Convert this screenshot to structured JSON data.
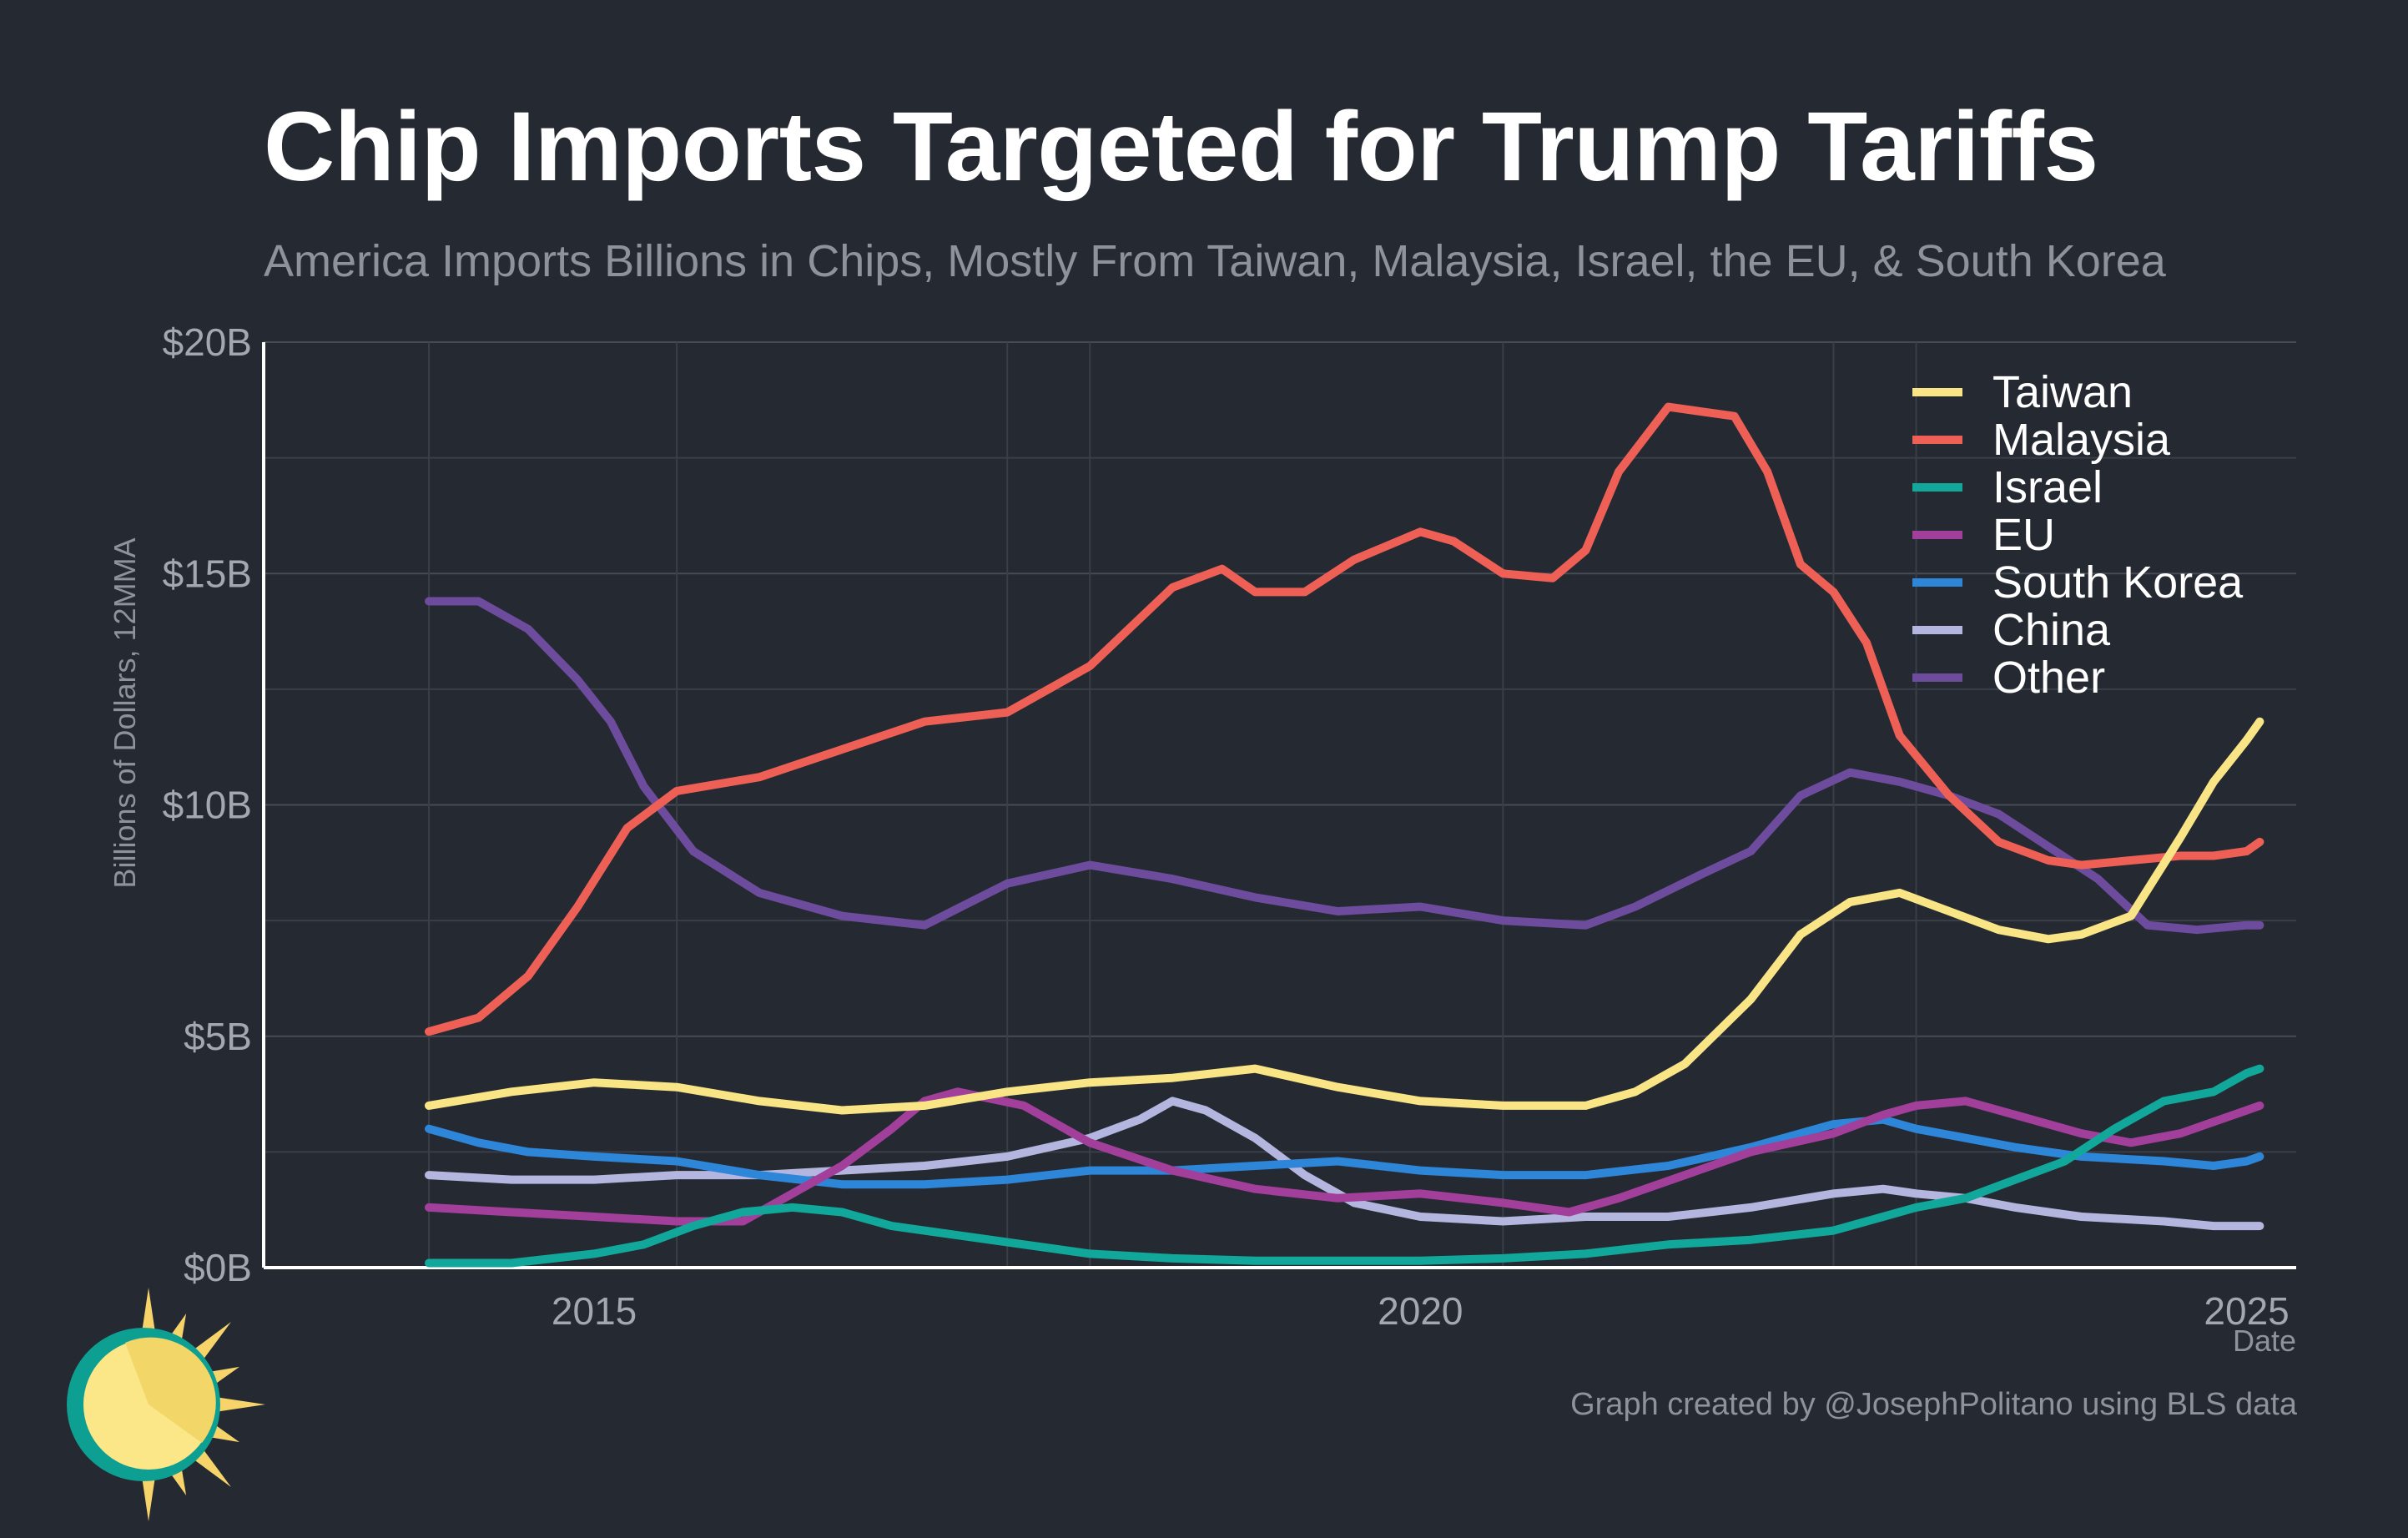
{
  "title": "Chip Imports Targeted for Trump Tariffs",
  "subtitle": "America Imports Billions in Chips, Mostly From Taiwan, Malaysia, Israel, the EU, & South Korea",
  "credit": "Graph created by @JosephPolitano using BLS data",
  "logo": "sun-logo-icon",
  "chart_data": {
    "type": "line",
    "ylabel": "Billions of Dollars, 12MMA",
    "xlabel": "Date",
    "x_ticks": [
      2015,
      2020,
      2025
    ],
    "x_tick_labels": [
      "2015",
      "2020",
      "2025"
    ],
    "y_ticks": [
      0,
      5,
      10,
      15,
      20
    ],
    "y_tick_labels": [
      "$0B",
      "$5B",
      "$10B",
      "$15B",
      "$20B"
    ],
    "xlim": [
      2013.0,
      2025.3
    ],
    "ylim": [
      0,
      20
    ],
    "grid": true,
    "legend_position": "top-right",
    "series": [
      {
        "name": "Taiwan",
        "color": "#f9e585",
        "x": [
          2014.0,
          2014.5,
          2015.0,
          2015.5,
          2016.0,
          2016.5,
          2017.0,
          2017.5,
          2018.0,
          2018.5,
          2019.0,
          2019.5,
          2020.0,
          2020.5,
          2021.0,
          2021.3,
          2021.6,
          2022.0,
          2022.3,
          2022.6,
          2022.9,
          2023.2,
          2023.5,
          2023.8,
          2024.0,
          2024.3,
          2024.6,
          2024.8,
          2025.0,
          2025.08
        ],
        "y": [
          3.5,
          3.8,
          4.0,
          3.9,
          3.6,
          3.4,
          3.5,
          3.8,
          4.0,
          4.1,
          4.3,
          3.9,
          3.6,
          3.5,
          3.5,
          3.8,
          4.4,
          5.8,
          7.2,
          7.9,
          8.1,
          7.7,
          7.3,
          7.1,
          7.2,
          7.6,
          9.3,
          10.5,
          11.4,
          11.8
        ]
      },
      {
        "name": "Malaysia",
        "color": "#ee6055",
        "x": [
          2014.0,
          2014.3,
          2014.6,
          2014.9,
          2015.2,
          2015.5,
          2016.0,
          2016.5,
          2017.0,
          2017.5,
          2018.0,
          2018.5,
          2018.8,
          2019.0,
          2019.3,
          2019.6,
          2020.0,
          2020.2,
          2020.5,
          2020.8,
          2021.0,
          2021.2,
          2021.5,
          2021.7,
          2021.9,
          2022.1,
          2022.3,
          2022.5,
          2022.7,
          2022.9,
          2023.2,
          2023.5,
          2023.8,
          2024.0,
          2024.3,
          2024.6,
          2024.8,
          2025.0,
          2025.08
        ],
        "y": [
          5.1,
          5.4,
          6.3,
          7.8,
          9.5,
          10.3,
          10.6,
          11.2,
          11.8,
          12.0,
          13.0,
          14.7,
          15.1,
          14.6,
          14.6,
          15.3,
          15.9,
          15.7,
          15.0,
          14.9,
          15.5,
          17.2,
          18.6,
          18.5,
          18.4,
          17.2,
          15.2,
          14.6,
          13.5,
          11.5,
          10.2,
          9.2,
          8.8,
          8.7,
          8.8,
          8.9,
          8.9,
          9.0,
          9.2
        ]
      },
      {
        "name": "Israel",
        "color": "#11a79a",
        "x": [
          2014.0,
          2014.5,
          2015.0,
          2015.3,
          2015.6,
          2015.9,
          2016.2,
          2016.5,
          2016.8,
          2017.2,
          2017.6,
          2018.0,
          2018.5,
          2019.0,
          2019.5,
          2020.0,
          2020.5,
          2021.0,
          2021.5,
          2022.0,
          2022.5,
          2022.8,
          2023.0,
          2023.3,
          2023.6,
          2023.9,
          2024.2,
          2024.5,
          2024.8,
          2025.0,
          2025.08
        ],
        "y": [
          0.1,
          0.1,
          0.3,
          0.5,
          0.9,
          1.2,
          1.3,
          1.2,
          0.9,
          0.7,
          0.5,
          0.3,
          0.2,
          0.15,
          0.15,
          0.15,
          0.2,
          0.3,
          0.5,
          0.6,
          0.8,
          1.1,
          1.3,
          1.5,
          1.9,
          2.3,
          3.0,
          3.6,
          3.8,
          4.2,
          4.3
        ]
      },
      {
        "name": "EU",
        "color": "#a23f9b",
        "x": [
          2014.0,
          2014.5,
          2015.0,
          2015.5,
          2015.9,
          2016.2,
          2016.5,
          2016.8,
          2017.0,
          2017.2,
          2017.6,
          2018.0,
          2018.5,
          2019.0,
          2019.5,
          2020.0,
          2020.5,
          2020.9,
          2021.2,
          2021.6,
          2022.0,
          2022.5,
          2022.8,
          2023.0,
          2023.3,
          2023.6,
          2024.0,
          2024.3,
          2024.6,
          2025.0,
          2025.08
        ],
        "y": [
          1.3,
          1.2,
          1.1,
          1.0,
          1.0,
          1.6,
          2.2,
          3.0,
          3.6,
          3.8,
          3.5,
          2.7,
          2.1,
          1.7,
          1.5,
          1.6,
          1.4,
          1.2,
          1.5,
          2.0,
          2.5,
          2.9,
          3.3,
          3.5,
          3.6,
          3.3,
          2.9,
          2.7,
          2.9,
          3.4,
          3.5
        ]
      },
      {
        "name": "South Korea",
        "color": "#2e86d8",
        "x": [
          2014.0,
          2014.3,
          2014.6,
          2015.0,
          2015.5,
          2016.0,
          2016.5,
          2017.0,
          2017.5,
          2018.0,
          2018.5,
          2019.0,
          2019.5,
          2020.0,
          2020.5,
          2021.0,
          2021.5,
          2022.0,
          2022.5,
          2022.8,
          2023.0,
          2023.3,
          2023.6,
          2024.0,
          2024.5,
          2024.8,
          2025.0,
          2025.08
        ],
        "y": [
          3.0,
          2.7,
          2.5,
          2.4,
          2.3,
          2.0,
          1.8,
          1.8,
          1.9,
          2.1,
          2.1,
          2.2,
          2.3,
          2.1,
          2.0,
          2.0,
          2.2,
          2.6,
          3.1,
          3.2,
          3.0,
          2.8,
          2.6,
          2.4,
          2.3,
          2.2,
          2.3,
          2.4
        ]
      },
      {
        "name": "China",
        "color": "#b5b6e0",
        "x": [
          2014.0,
          2014.5,
          2015.0,
          2015.5,
          2016.0,
          2016.5,
          2017.0,
          2017.5,
          2018.0,
          2018.3,
          2018.5,
          2018.7,
          2019.0,
          2019.3,
          2019.6,
          2020.0,
          2020.5,
          2021.0,
          2021.5,
          2022.0,
          2022.5,
          2022.8,
          2023.0,
          2023.3,
          2023.6,
          2024.0,
          2024.5,
          2024.8,
          2025.0,
          2025.08
        ],
        "y": [
          2.0,
          1.9,
          1.9,
          2.0,
          2.0,
          2.1,
          2.2,
          2.4,
          2.8,
          3.2,
          3.6,
          3.4,
          2.8,
          2.0,
          1.4,
          1.1,
          1.0,
          1.1,
          1.1,
          1.3,
          1.6,
          1.7,
          1.6,
          1.5,
          1.3,
          1.1,
          1.0,
          0.9,
          0.9,
          0.9
        ]
      },
      {
        "name": "Other",
        "color": "#6d4c9d",
        "x": [
          2014.0,
          2014.3,
          2014.6,
          2014.9,
          2015.1,
          2015.3,
          2015.6,
          2016.0,
          2016.5,
          2017.0,
          2017.5,
          2018.0,
          2018.5,
          2019.0,
          2019.5,
          2020.0,
          2020.5,
          2021.0,
          2021.3,
          2021.7,
          2022.0,
          2022.3,
          2022.6,
          2022.9,
          2023.2,
          2023.5,
          2023.8,
          2024.1,
          2024.4,
          2024.7,
          2025.0,
          2025.08
        ],
        "y": [
          14.4,
          14.4,
          13.8,
          12.7,
          11.8,
          10.4,
          9.0,
          8.1,
          7.6,
          7.4,
          8.3,
          8.7,
          8.4,
          8.0,
          7.7,
          7.8,
          7.5,
          7.4,
          7.8,
          8.5,
          9.0,
          10.2,
          10.7,
          10.5,
          10.2,
          9.8,
          9.1,
          8.4,
          7.4,
          7.3,
          7.4,
          7.4
        ]
      }
    ]
  }
}
